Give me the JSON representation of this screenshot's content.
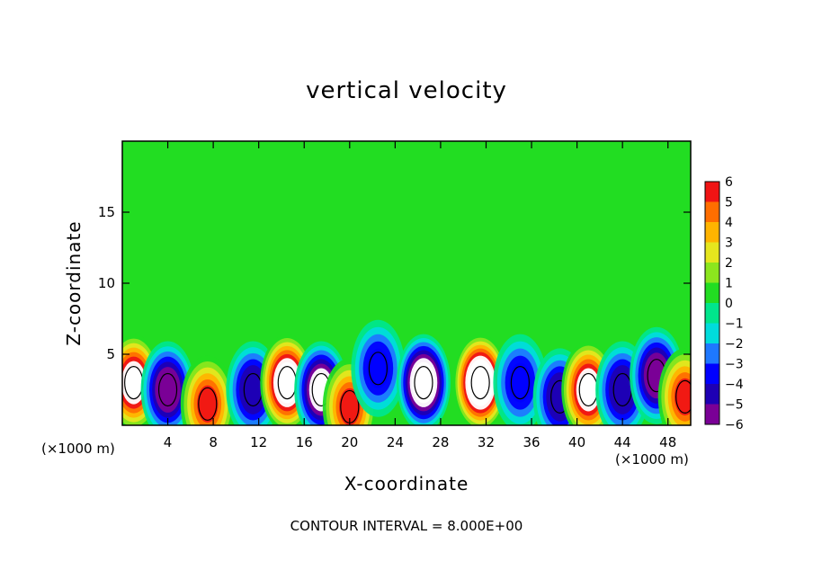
{
  "chart_data": {
    "type": "heatmap",
    "title": "vertical velocity",
    "xlabel": "X-coordinate",
    "ylabel": "Z-coordinate",
    "x_unit": "(×1000 m)",
    "xlim": [
      0,
      50
    ],
    "ylim": [
      0,
      20
    ],
    "x_ticks": [
      4,
      8,
      12,
      16,
      20,
      24,
      28,
      32,
      36,
      40,
      44,
      48
    ],
    "y_ticks": [
      5,
      10,
      15
    ],
    "colorbar": {
      "min": -6,
      "max": 6,
      "labels": [
        6,
        5,
        4,
        3,
        2,
        1,
        0,
        -1,
        -2,
        -3,
        -4,
        -5,
        -6
      ]
    },
    "annotation": "CONTOUR INTERVAL = 8.000E+00",
    "features": [
      {
        "x": 1,
        "z": 3,
        "w": 7
      },
      {
        "x": 4,
        "z": 2.5,
        "w": -6
      },
      {
        "x": 7.5,
        "z": 1.5,
        "w": 5
      },
      {
        "x": 11.5,
        "z": 2.5,
        "w": -5
      },
      {
        "x": 14.5,
        "z": 3,
        "w": 8
      },
      {
        "x": 17.5,
        "z": 2.5,
        "w": -7
      },
      {
        "x": 20,
        "z": 1.3,
        "w": 5
      },
      {
        "x": 22.5,
        "z": 4,
        "w": -4
      },
      {
        "x": 26.5,
        "z": 3,
        "w": -8
      },
      {
        "x": 31.5,
        "z": 3,
        "w": 9
      },
      {
        "x": 35,
        "z": 3,
        "w": -4
      },
      {
        "x": 38.5,
        "z": 2,
        "w": -5
      },
      {
        "x": 41,
        "z": 2.5,
        "w": 7
      },
      {
        "x": 44,
        "z": 2.5,
        "w": -5
      },
      {
        "x": 47,
        "z": 3.5,
        "w": -6
      },
      {
        "x": 49.5,
        "z": 2,
        "w": 5
      }
    ]
  }
}
